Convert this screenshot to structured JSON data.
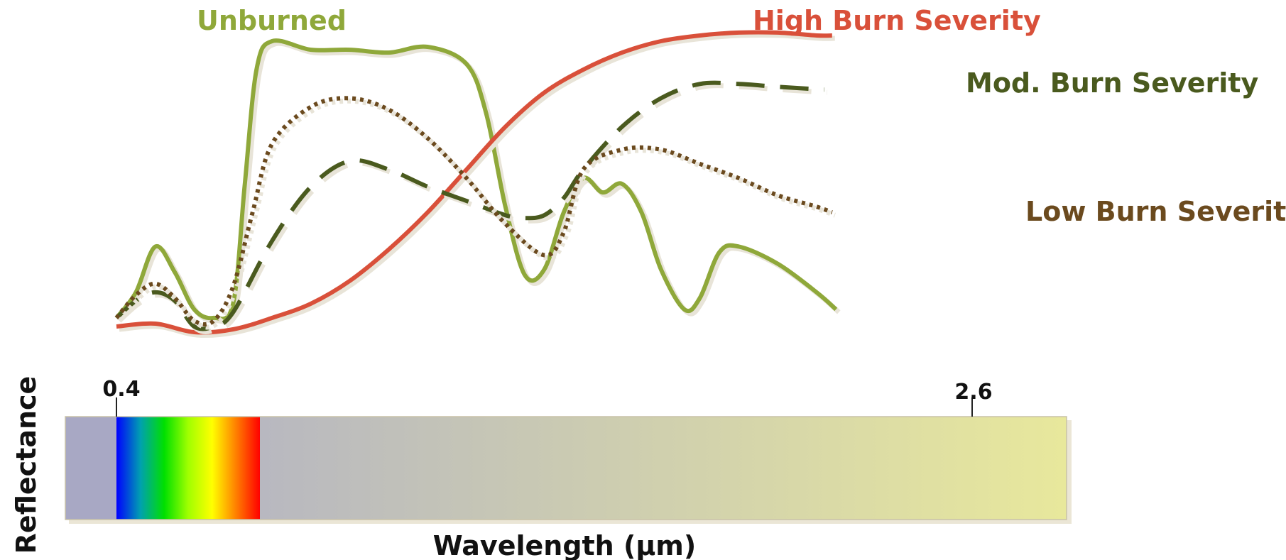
{
  "chart_data": {
    "type": "line",
    "xlabel": "Wavelength (µm)",
    "ylabel": "Reflectance",
    "xlim": [
      0.4,
      2.6
    ],
    "ylim": [
      0,
      1
    ],
    "grid": false,
    "legend": "inline labels at line ends",
    "x_ticks": [
      0.4,
      2.6
    ],
    "x_tick_labels": [
      "0.4",
      "2.6"
    ],
    "series": [
      {
        "name": "Unburned",
        "color": "#8fa83a",
        "style": "solid",
        "points": [
          [
            0.4,
            0.03
          ],
          [
            0.45,
            0.12
          ],
          [
            0.5,
            0.28
          ],
          [
            0.55,
            0.19
          ],
          [
            0.6,
            0.06
          ],
          [
            0.65,
            0.03
          ],
          [
            0.7,
            0.08
          ],
          [
            0.73,
            0.5
          ],
          [
            0.76,
            0.9
          ],
          [
            0.8,
            1.0
          ],
          [
            0.9,
            0.97
          ],
          [
            1.0,
            0.97
          ],
          [
            1.1,
            0.96
          ],
          [
            1.2,
            0.98
          ],
          [
            1.3,
            0.92
          ],
          [
            1.35,
            0.75
          ],
          [
            1.4,
            0.42
          ],
          [
            1.45,
            0.18
          ],
          [
            1.5,
            0.2
          ],
          [
            1.55,
            0.4
          ],
          [
            1.6,
            0.52
          ],
          [
            1.65,
            0.47
          ],
          [
            1.7,
            0.5
          ],
          [
            1.75,
            0.4
          ],
          [
            1.8,
            0.2
          ],
          [
            1.86,
            0.06
          ],
          [
            1.9,
            0.1
          ],
          [
            1.95,
            0.26
          ],
          [
            2.0,
            0.28
          ],
          [
            2.1,
            0.22
          ],
          [
            2.2,
            0.12
          ],
          [
            2.25,
            0.06
          ]
        ]
      },
      {
        "name": "High Burn Severity",
        "color": "#d9503a",
        "style": "solid",
        "points": [
          [
            0.4,
            0.0
          ],
          [
            0.5,
            0.01
          ],
          [
            0.6,
            -0.02
          ],
          [
            0.7,
            -0.01
          ],
          [
            0.8,
            0.03
          ],
          [
            0.9,
            0.08
          ],
          [
            1.0,
            0.16
          ],
          [
            1.1,
            0.27
          ],
          [
            1.2,
            0.4
          ],
          [
            1.3,
            0.55
          ],
          [
            1.4,
            0.7
          ],
          [
            1.5,
            0.82
          ],
          [
            1.6,
            0.9
          ],
          [
            1.7,
            0.96
          ],
          [
            1.8,
            1.0
          ],
          [
            1.9,
            1.02
          ],
          [
            2.0,
            1.03
          ],
          [
            2.1,
            1.03
          ],
          [
            2.2,
            1.02
          ],
          [
            2.24,
            1.02
          ]
        ]
      },
      {
        "name": "Mod. Burn Severity",
        "color": "#4a5a1e",
        "style": "dashed",
        "points": [
          [
            0.4,
            0.03
          ],
          [
            0.45,
            0.09
          ],
          [
            0.5,
            0.12
          ],
          [
            0.55,
            0.09
          ],
          [
            0.6,
            0.0
          ],
          [
            0.65,
            0.0
          ],
          [
            0.7,
            0.05
          ],
          [
            0.8,
            0.3
          ],
          [
            0.9,
            0.49
          ],
          [
            1.0,
            0.58
          ],
          [
            1.1,
            0.55
          ],
          [
            1.2,
            0.49
          ],
          [
            1.3,
            0.44
          ],
          [
            1.4,
            0.39
          ],
          [
            1.45,
            0.38
          ],
          [
            1.5,
            0.39
          ],
          [
            1.55,
            0.45
          ],
          [
            1.6,
            0.55
          ],
          [
            1.7,
            0.7
          ],
          [
            1.8,
            0.8
          ],
          [
            1.9,
            0.85
          ],
          [
            2.0,
            0.85
          ],
          [
            2.1,
            0.84
          ],
          [
            2.22,
            0.83
          ]
        ]
      },
      {
        "name": "Low Burn Severity",
        "color": "#6b4a1e",
        "style": "dotted",
        "points": [
          [
            0.4,
            0.03
          ],
          [
            0.45,
            0.11
          ],
          [
            0.5,
            0.15
          ],
          [
            0.55,
            0.1
          ],
          [
            0.6,
            0.02
          ],
          [
            0.65,
            0.02
          ],
          [
            0.7,
            0.14
          ],
          [
            0.75,
            0.4
          ],
          [
            0.8,
            0.64
          ],
          [
            0.9,
            0.77
          ],
          [
            1.0,
            0.8
          ],
          [
            1.1,
            0.76
          ],
          [
            1.2,
            0.66
          ],
          [
            1.3,
            0.52
          ],
          [
            1.4,
            0.36
          ],
          [
            1.5,
            0.25
          ],
          [
            1.55,
            0.33
          ],
          [
            1.6,
            0.55
          ],
          [
            1.7,
            0.62
          ],
          [
            1.8,
            0.62
          ],
          [
            1.9,
            0.57
          ],
          [
            2.0,
            0.52
          ],
          [
            2.1,
            0.46
          ],
          [
            2.2,
            0.42
          ],
          [
            2.24,
            0.4
          ]
        ]
      }
    ]
  },
  "spectrum_bar": {
    "colors": {
      "ultraviolet": "#a8a8c4",
      "visible_stops": [
        "#0000ff",
        "#00a0b0",
        "#00e000",
        "#a0ff00",
        "#ffff00",
        "#ff8000",
        "#ff0000"
      ],
      "infrared_start": "#b8b8c0",
      "infrared_end": "#e8e89c"
    }
  }
}
